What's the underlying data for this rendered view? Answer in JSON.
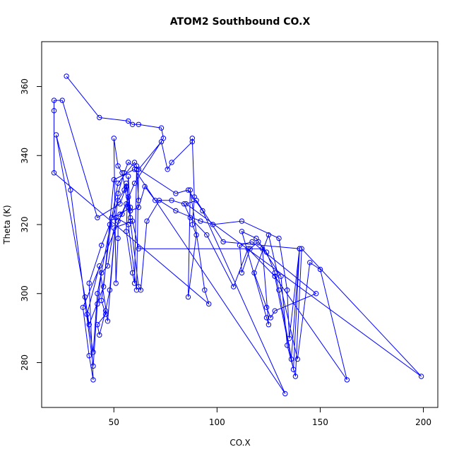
{
  "chart_data": {
    "type": "scatter",
    "title": "ATOM2 Southbound CO.X",
    "xlabel": "CO.X",
    "ylabel": "Theta (K)",
    "xlim": [
      15,
      207
    ],
    "ylim": [
      267,
      373
    ],
    "xticks": [
      50,
      100,
      150,
      200
    ],
    "yticks": [
      280,
      300,
      320,
      340,
      360
    ],
    "grid": false,
    "series": [
      {
        "color": "#0000ff",
        "style": "lines+open-circles",
        "points": [
          [
            27,
            363
          ],
          [
            43,
            351
          ],
          [
            57,
            350
          ],
          [
            59,
            349
          ],
          [
            62,
            349
          ],
          [
            73,
            348
          ],
          [
            74,
            345
          ],
          [
            60,
            332
          ],
          [
            35,
            296
          ],
          [
            38,
            282
          ],
          [
            40,
            275
          ],
          [
            38,
            303
          ],
          [
            44,
            314
          ],
          [
            48,
            320
          ],
          [
            52,
            327
          ],
          [
            55,
            330
          ],
          [
            56,
            332
          ],
          [
            57,
            328
          ],
          [
            58,
            321
          ],
          [
            62,
            302
          ],
          [
            63,
            301
          ],
          [
            66,
            321
          ],
          [
            72,
            327
          ],
          [
            80,
            324
          ],
          [
            92,
            321
          ],
          [
            98,
            320
          ],
          [
            112,
            321
          ],
          [
            130,
            316
          ],
          [
            134,
            301
          ],
          [
            135,
            287
          ],
          [
            140,
            313
          ],
          [
            137,
            278
          ],
          [
            130,
            301
          ],
          [
            128,
            306
          ],
          [
            124,
            312
          ],
          [
            120,
            315
          ],
          [
            116,
            313
          ],
          [
            112,
            306
          ],
          [
            111,
            314
          ],
          [
            117,
            315
          ],
          [
            148,
            300
          ],
          [
            128,
            295
          ],
          [
            126,
            293
          ],
          [
            124,
            296
          ],
          [
            118,
            306
          ],
          [
            125,
            317
          ],
          [
            139,
            281
          ],
          [
            145,
            309
          ],
          [
            150,
            307
          ],
          [
            163,
            275
          ],
          [
            128,
            305
          ],
          [
            115,
            313
          ],
          [
            108,
            302
          ],
          [
            95,
            317
          ],
          [
            87,
            322
          ],
          [
            84,
            326
          ],
          [
            78,
            327
          ],
          [
            70,
            327
          ],
          [
            65,
            331
          ],
          [
            62,
            325
          ],
          [
            58,
            324
          ],
          [
            56,
            326
          ],
          [
            54,
            323
          ],
          [
            52,
            321
          ],
          [
            52,
            316
          ],
          [
            51,
            303
          ],
          [
            50,
            345
          ],
          [
            52,
            337
          ],
          [
            54,
            335
          ],
          [
            57,
            325
          ],
          [
            58,
            322
          ],
          [
            57,
            334
          ],
          [
            56,
            318
          ],
          [
            59,
            306
          ],
          [
            60,
            303
          ],
          [
            61,
            336
          ],
          [
            62,
            327
          ],
          [
            61,
            337
          ],
          [
            60,
            338
          ],
          [
            52,
            332
          ],
          [
            49,
            322
          ],
          [
            42,
            300
          ],
          [
            40,
            283
          ],
          [
            37,
            294
          ],
          [
            43,
            308
          ],
          [
            47,
            292
          ],
          [
            51,
            322
          ],
          [
            57,
            320
          ],
          [
            61,
            301
          ],
          [
            62,
            336
          ],
          [
            73,
            344
          ],
          [
            76,
            336
          ],
          [
            78,
            338
          ],
          [
            88,
            344
          ],
          [
            88,
            345
          ],
          [
            89,
            328
          ],
          [
            88,
            320
          ],
          [
            90,
            317
          ],
          [
            86,
            299
          ],
          [
            87,
            330
          ],
          [
            94,
            301
          ],
          [
            96,
            297
          ],
          [
            21,
            335
          ],
          [
            21,
            353
          ],
          [
            21,
            356
          ],
          [
            25,
            356
          ],
          [
            42,
            322
          ],
          [
            53,
            326
          ],
          [
            56,
            331
          ],
          [
            58,
            325
          ],
          [
            53,
            323
          ],
          [
            49,
            322
          ],
          [
            44,
            298
          ],
          [
            46,
            294
          ],
          [
            42,
            291
          ],
          [
            43,
            288
          ],
          [
            46,
            295
          ],
          [
            48,
            301
          ],
          [
            52,
            329
          ],
          [
            55,
            335
          ],
          [
            57,
            338
          ],
          [
            80,
            329
          ],
          [
            86,
            330
          ],
          [
            93,
            324
          ],
          [
            133,
            271
          ],
          [
            60,
            336
          ],
          [
            50,
            333
          ],
          [
            45,
            302
          ],
          [
            38,
            291
          ],
          [
            36,
            299
          ],
          [
            22,
            346
          ],
          [
            29,
            330
          ],
          [
            40,
            279
          ],
          [
            42,
            297
          ],
          [
            44,
            306
          ],
          [
            47,
            308
          ],
          [
            50,
            319
          ],
          [
            59,
            321
          ],
          [
            62,
            313
          ],
          [
            122,
            313
          ],
          [
            125,
            291
          ],
          [
            124,
            293
          ],
          [
            112,
            318
          ],
          [
            119,
            316
          ],
          [
            131,
            305
          ],
          [
            134,
            285
          ],
          [
            138,
            276
          ],
          [
            141,
            313
          ],
          [
            199,
            276
          ],
          [
            85,
            326
          ],
          [
            90,
            327
          ],
          [
            103,
            315
          ],
          [
            140,
            313
          ],
          [
            136,
            281
          ],
          [
            128,
            305
          ]
        ]
      }
    ]
  }
}
